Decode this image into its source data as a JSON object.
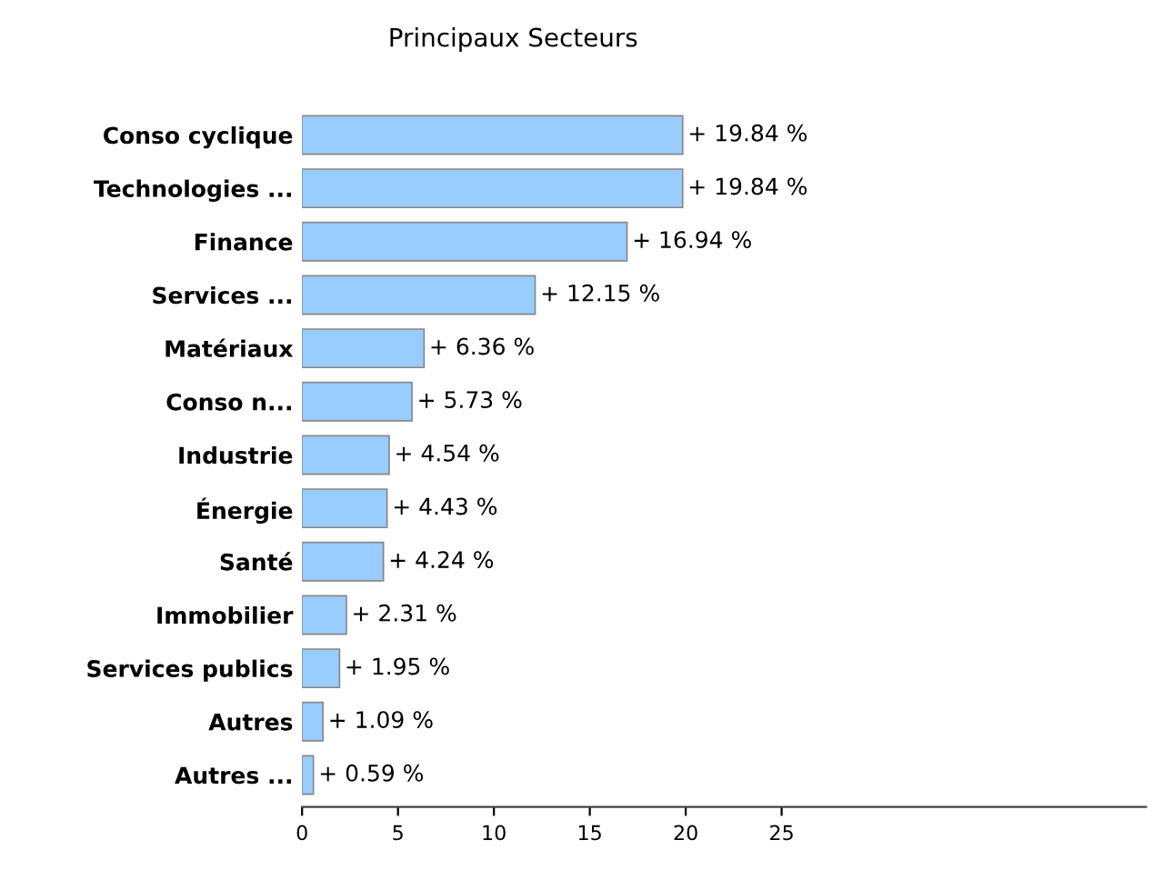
{
  "chart_data": {
    "type": "bar",
    "orientation": "horizontal",
    "title": "Principaux Secteurs",
    "categories": [
      "Conso cyclique",
      "Technologies ...",
      "Finance",
      "Services ...",
      "Matériaux",
      "Conso n...",
      "Industrie",
      "Énergie",
      "Santé",
      "Immobilier",
      "Services publics",
      "Autres",
      "Autres ..."
    ],
    "values": [
      19.84,
      19.84,
      16.94,
      12.15,
      6.36,
      5.73,
      4.54,
      4.43,
      4.24,
      2.31,
      1.95,
      1.09,
      0.59
    ],
    "value_labels": [
      "+ 19.84 %",
      "+ 19.84 %",
      "+ 16.94 %",
      "+ 12.15 %",
      "+ 6.36 %",
      "+ 5.73 %",
      "+ 4.54 %",
      "+ 4.43 %",
      "+ 4.24 %",
      "+ 2.31 %",
      "+ 1.95 %",
      "+ 1.09 %",
      "+ 0.59 %"
    ],
    "color": "#99ccff",
    "xlim": [
      0,
      44
    ],
    "xticks": [
      0,
      5,
      10,
      15,
      20,
      25
    ],
    "grid": false,
    "legend": false
  }
}
